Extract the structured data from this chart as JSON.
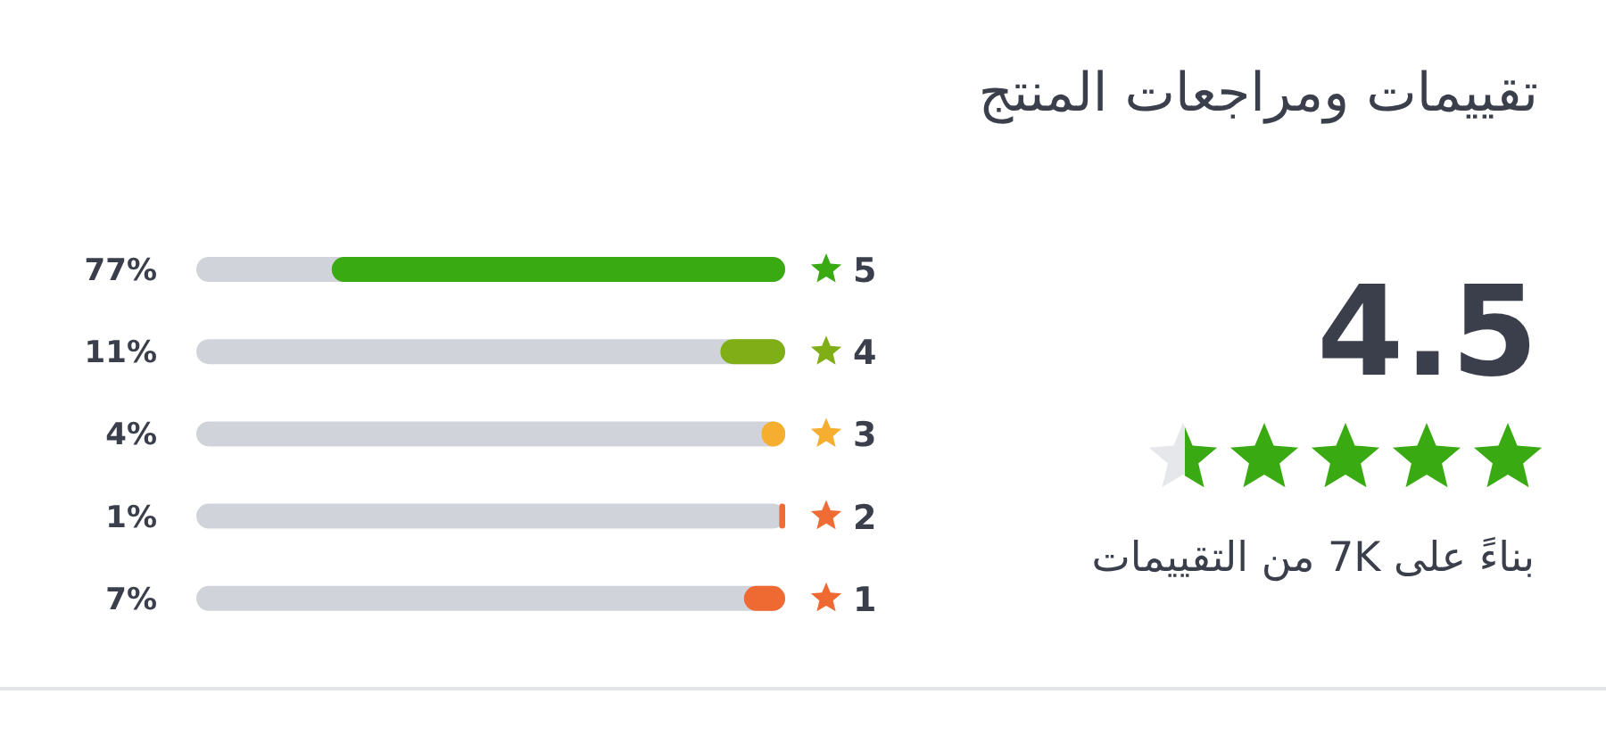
{
  "chart_data": [
    {
      "type": "bar",
      "orientation": "horizontal",
      "categories": [
        "5",
        "4",
        "3",
        "2",
        "1"
      ],
      "values": [
        77,
        11,
        4,
        1,
        7
      ],
      "colors": [
        "#3aaa12",
        "#7fae16",
        "#f5ae2f",
        "#ef6c35",
        "#ee6a32"
      ],
      "value_labels": [
        "77%",
        "11%",
        "4%",
        "1%",
        "7%"
      ],
      "xlim": [
        100,
        0
      ],
      "tick_labels": "y"
    },
    {
      "type": "other",
      "title": "تقييمات ومراجعات المنتج",
      "annotations": [
        "4.5",
        "بناءً على 7K من التقييمات"
      ]
    }
  ]
}
